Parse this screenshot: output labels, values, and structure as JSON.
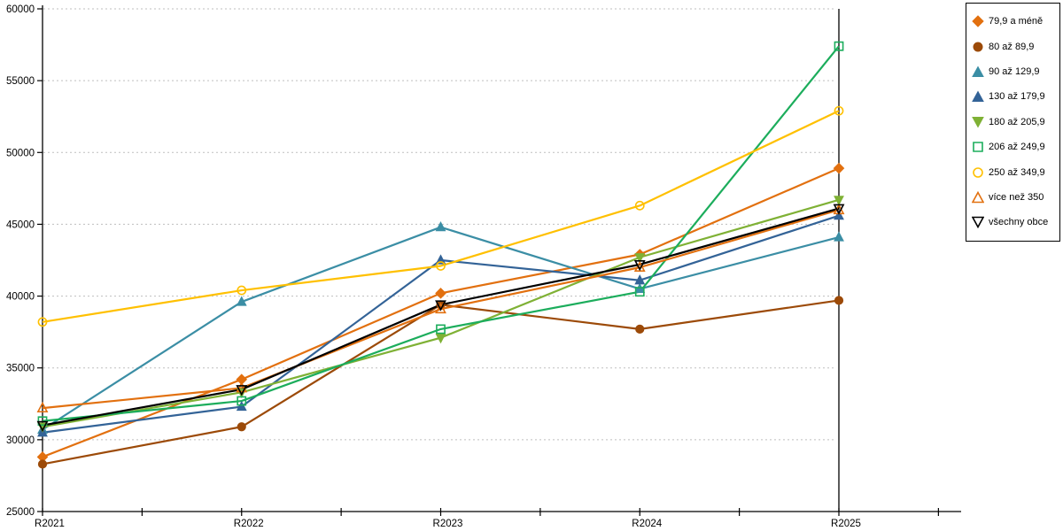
{
  "chart_data": {
    "type": "line",
    "categories": [
      "R2021",
      "R2022",
      "R2023",
      "R2024",
      "R2025"
    ],
    "series": [
      {
        "name": "79,9 a méně",
        "color": "#E2700F",
        "marker": "diamond",
        "fill": "filled",
        "values": [
          28800,
          34200,
          40200,
          42900,
          48900
        ]
      },
      {
        "name": "80 až 89,9",
        "color": "#9C4A08",
        "marker": "circle",
        "fill": "filled",
        "values": [
          28300,
          30900,
          39400,
          37700,
          39700
        ]
      },
      {
        "name": "90 až 129,9",
        "color": "#3B8EA5",
        "marker": "triangle-up",
        "fill": "filled",
        "values": [
          30700,
          39600,
          44800,
          40500,
          44100
        ]
      },
      {
        "name": "130 až 179,9",
        "color": "#336397",
        "marker": "triangle-up",
        "fill": "filled",
        "values": [
          30500,
          32300,
          42500,
          41100,
          45600
        ]
      },
      {
        "name": "180 až 205,9",
        "color": "#7FB135",
        "marker": "triangle-down",
        "fill": "filled",
        "values": [
          30900,
          33300,
          37100,
          42700,
          46700
        ]
      },
      {
        "name": "206 až 249,9",
        "color": "#1CAD5C",
        "marker": "square",
        "fill": "hollow",
        "values": [
          31300,
          32700,
          37700,
          40300,
          57400
        ]
      },
      {
        "name": "250 až 349,9",
        "color": "#FFC000",
        "marker": "circle",
        "fill": "hollow",
        "values": [
          38200,
          40400,
          42100,
          46300,
          52900
        ]
      },
      {
        "name": "více než 350",
        "color": "#E2700F",
        "marker": "triangle-up",
        "fill": "hollow",
        "values": [
          32200,
          33600,
          39100,
          42000,
          46000
        ]
      },
      {
        "name": "všechny obce",
        "color": "#000000",
        "marker": "triangle-down",
        "fill": "hollow",
        "values": [
          31000,
          33500,
          39400,
          42200,
          46100
        ]
      }
    ],
    "title": "",
    "xlabel": "",
    "ylabel": "",
    "ylim": [
      25000,
      60000
    ],
    "ytick_step": 5000,
    "ytick_labels": [
      "25000",
      "30000",
      "35000",
      "40000",
      "45000",
      "50000",
      "55000",
      "60000"
    ],
    "grid": "horizontal-dashed",
    "legend_position": "top-right"
  }
}
